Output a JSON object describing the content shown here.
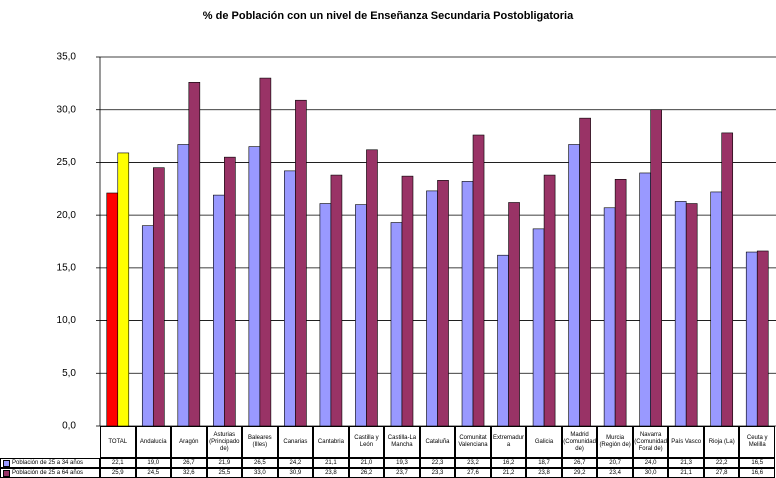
{
  "chart_data": {
    "type": "bar",
    "title": "% de Población con un nivel de Enseñanza Secundaria Postobligatoria",
    "categories": [
      "TOTAL",
      "Andalucía",
      "Aragón",
      "Asturias (Principado de)",
      "Baleares (Illes)",
      "Canarias",
      "Cantabria",
      "Castilla y León",
      "Castilla-La Mancha",
      "Cataluña",
      "Comunitat Valenciana",
      "Extremadura",
      "Galicia",
      "Madrid (Comunidad de)",
      "Murcia (Región de)",
      "Navarra (Comunidad Foral de)",
      "País Vasco",
      "Rioja (La)",
      "Ceuta y Melilla"
    ],
    "series": [
      {
        "name": "Población de 25 a 34 años",
        "color": "#9999ff",
        "colors": [
          "#ff0000",
          "#9999ff",
          "#9999ff",
          "#9999ff",
          "#9999ff",
          "#9999ff",
          "#9999ff",
          "#9999ff",
          "#9999ff",
          "#9999ff",
          "#9999ff",
          "#9999ff",
          "#9999ff",
          "#9999ff",
          "#9999ff",
          "#9999ff",
          "#9999ff",
          "#9999ff",
          "#9999ff"
        ],
        "values": [
          22.1,
          19.0,
          26.7,
          21.9,
          26.5,
          24.2,
          21.1,
          21.0,
          19.3,
          22.3,
          23.2,
          16.2,
          18.7,
          26.7,
          20.7,
          24.0,
          21.3,
          22.2,
          16.5
        ],
        "value_labels": [
          "22,1",
          "19,0",
          "26,7",
          "21,9",
          "26,5",
          "24,2",
          "21,1",
          "21,0",
          "19,3",
          "22,3",
          "23,2",
          "16,2",
          "18,7",
          "26,7",
          "20,7",
          "24,0",
          "21,3",
          "22,2",
          "16,5"
        ]
      },
      {
        "name": "Población de 25 a 64 años",
        "color": "#993366",
        "colors": [
          "#ffff00",
          "#993366",
          "#993366",
          "#993366",
          "#993366",
          "#993366",
          "#993366",
          "#993366",
          "#993366",
          "#993366",
          "#993366",
          "#993366",
          "#993366",
          "#993366",
          "#993366",
          "#993366",
          "#993366",
          "#993366",
          "#993366"
        ],
        "values": [
          25.9,
          24.5,
          32.6,
          25.5,
          33.0,
          30.9,
          23.8,
          26.2,
          23.7,
          23.3,
          27.6,
          21.2,
          23.8,
          29.2,
          23.4,
          30.0,
          21.1,
          27.8,
          16.6
        ],
        "value_labels": [
          "25,9",
          "24,5",
          "32,6",
          "25,5",
          "33,0",
          "30,9",
          "23,8",
          "26,2",
          "23,7",
          "23,3",
          "27,6",
          "21,2",
          "23,8",
          "29,2",
          "23,4",
          "30,0",
          "21,1",
          "27,8",
          "16,6"
        ]
      }
    ],
    "ylim": [
      0,
      35
    ],
    "yticks": [
      {
        "value": 0,
        "label": "0,0"
      },
      {
        "value": 5,
        "label": "5,0"
      },
      {
        "value": 10,
        "label": "10,0"
      },
      {
        "value": 15,
        "label": "15,0"
      },
      {
        "value": 20,
        "label": "20,0"
      },
      {
        "value": 25,
        "label": "25,0"
      },
      {
        "value": 30,
        "label": "30,0"
      },
      {
        "value": 35,
        "label": "35,0"
      }
    ],
    "grid": true
  }
}
